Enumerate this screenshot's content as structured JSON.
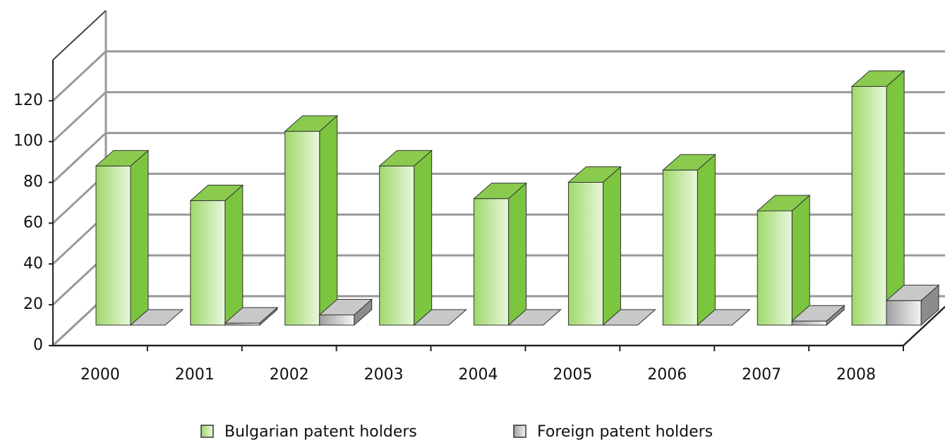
{
  "chart_data": {
    "type": "bar3d",
    "categories": [
      "2000",
      "2001",
      "2002",
      "2003",
      "2004",
      "2005",
      "2006",
      "2007",
      "2008"
    ],
    "series": [
      {
        "name": "Bulgarian patent holders",
        "color": "#9fd86a",
        "values": [
          78,
          61,
          95,
          78,
          62,
          70,
          76,
          56,
          117
        ]
      },
      {
        "name": "Foreign patent holders",
        "color": "#b8b8b8",
        "values": [
          0,
          1,
          5,
          0,
          0,
          0,
          0,
          2,
          12
        ]
      }
    ],
    "ylim": [
      0,
      140
    ],
    "yticks": [
      0,
      20,
      40,
      60,
      80,
      100,
      120
    ],
    "grid": true,
    "legend": "bottom"
  }
}
